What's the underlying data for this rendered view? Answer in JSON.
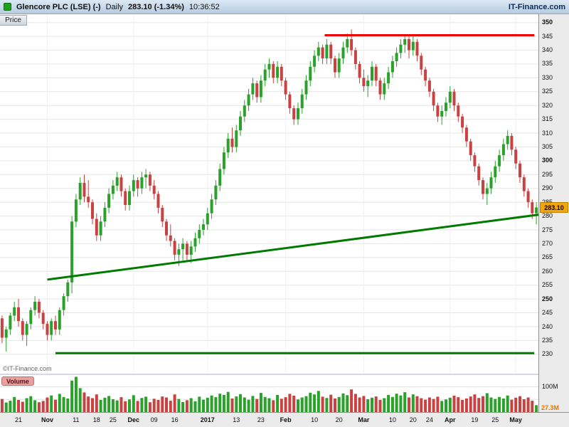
{
  "header": {
    "title": "Glencore PLC (LSE) (-)",
    "timeframe": "Daily",
    "quote": "283.10 (-1.34%)",
    "time": "10:36:52",
    "brand": "IT-Finance.com"
  },
  "price_pane": {
    "tab_label": "Price",
    "watermark": "©IT-Finance.com",
    "current_price_label": "283.10",
    "axis_ticks": [
      350,
      345,
      340,
      335,
      330,
      325,
      320,
      315,
      310,
      305,
      300,
      295,
      290,
      285,
      280,
      275,
      270,
      265,
      260,
      255,
      250,
      245,
      240,
      235,
      230
    ],
    "bold_ticks": [
      350,
      300,
      250
    ]
  },
  "volume_pane": {
    "label": "Volume",
    "axis_label_100": "100M",
    "last_value_label": "27.3M"
  },
  "x_axis": {
    "labels": [
      {
        "text": "21",
        "index": 4,
        "bold": false
      },
      {
        "text": "Nov",
        "index": 11,
        "bold": true
      },
      {
        "text": "11",
        "index": 18,
        "bold": false
      },
      {
        "text": "18",
        "index": 23,
        "bold": false
      },
      {
        "text": "25",
        "index": 27,
        "bold": false
      },
      {
        "text": "Dec",
        "index": 32,
        "bold": true
      },
      {
        "text": "09",
        "index": 37,
        "bold": false
      },
      {
        "text": "16",
        "index": 42,
        "bold": false
      },
      {
        "text": "2017",
        "index": 50,
        "bold": true
      },
      {
        "text": "13",
        "index": 57,
        "bold": false
      },
      {
        "text": "23",
        "index": 63,
        "bold": false
      },
      {
        "text": "Feb",
        "index": 69,
        "bold": true
      },
      {
        "text": "10",
        "index": 76,
        "bold": false
      },
      {
        "text": "20",
        "index": 82,
        "bold": false
      },
      {
        "text": "Mar",
        "index": 88,
        "bold": true
      },
      {
        "text": "10",
        "index": 95,
        "bold": false
      },
      {
        "text": "20",
        "index": 100,
        "bold": false
      },
      {
        "text": "24",
        "index": 104,
        "bold": false
      },
      {
        "text": "Apr",
        "index": 109,
        "bold": true
      },
      {
        "text": "19",
        "index": 115,
        "bold": false
      },
      {
        "text": "25",
        "index": 120,
        "bold": false
      },
      {
        "text": "May",
        "index": 125,
        "bold": true
      }
    ]
  },
  "colors": {
    "candle_up": "#2aa12a",
    "candle_down": "#c94141",
    "resistance_line": "#ee0000",
    "support_line": "#007a00",
    "current_price_bg": "#f2a60a",
    "volume_last_label": "#e07800"
  },
  "chart_data": {
    "type": "candlestick+volume",
    "title": "Glencore PLC (LSE) Daily",
    "ylim": [
      223,
      353
    ],
    "y_tick_step": 5,
    "last_price": 283.1,
    "last_volume_millions": 27.3,
    "vertical_gridline_indices": [
      11,
      32,
      50,
      69,
      88,
      109,
      125
    ],
    "trendlines": [
      {
        "name": "resistance-line",
        "x1": 78.5,
        "y1": 345.4,
        "x2": 129.5,
        "y2": 345.4,
        "color": "#ee0000",
        "width": 3
      },
      {
        "name": "rising-support-line",
        "x1": 11,
        "y1": 257,
        "x2": 130.6,
        "y2": 280.5,
        "color": "#007a00",
        "width": 3
      },
      {
        "name": "horizontal-support-line",
        "x1": 13,
        "y1": 230.4,
        "x2": 129.5,
        "y2": 230.4,
        "color": "#007a00",
        "width": 3
      }
    ],
    "volume_ylim": [
      0,
      147
    ],
    "volume_gridlines": [
      50,
      100
    ],
    "candles": [
      [
        243,
        244,
        234,
        236
      ],
      [
        236,
        240,
        231,
        239
      ],
      [
        239,
        245,
        237,
        244
      ],
      [
        244,
        249,
        242,
        247
      ],
      [
        247,
        250,
        240,
        242
      ],
      [
        242,
        243,
        235,
        237
      ],
      [
        237,
        242,
        233,
        241
      ],
      [
        241,
        247,
        239,
        246
      ],
      [
        246,
        251,
        244,
        249
      ],
      [
        249,
        250,
        243,
        245
      ],
      [
        245,
        246,
        239,
        241
      ],
      [
        241,
        242,
        235,
        237
      ],
      [
        237,
        243,
        235,
        242
      ],
      [
        242,
        244,
        237,
        239
      ],
      [
        239,
        247,
        237,
        246
      ],
      [
        246,
        252,
        244,
        251
      ],
      [
        251,
        257,
        249,
        256
      ],
      [
        256,
        280,
        252,
        278
      ],
      [
        278,
        288,
        276,
        286
      ],
      [
        286,
        294,
        284,
        292
      ],
      [
        292,
        295,
        285,
        287
      ],
      [
        287,
        293,
        283,
        285
      ],
      [
        285,
        286,
        277,
        279
      ],
      [
        279,
        281,
        271,
        273
      ],
      [
        273,
        280,
        271,
        278
      ],
      [
        278,
        285,
        276,
        283
      ],
      [
        283,
        290,
        281,
        288
      ],
      [
        288,
        293,
        286,
        291
      ],
      [
        291,
        296,
        289,
        294
      ],
      [
        294,
        295,
        287,
        289
      ],
      [
        289,
        290,
        282,
        284
      ],
      [
        284,
        291,
        282,
        289
      ],
      [
        289,
        295,
        287,
        293
      ],
      [
        293,
        294,
        287,
        290
      ],
      [
        290,
        296,
        288,
        294
      ],
      [
        294,
        297,
        290,
        295
      ],
      [
        295,
        296,
        289,
        291
      ],
      [
        291,
        293,
        286,
        288
      ],
      [
        288,
        289,
        281,
        283
      ],
      [
        283,
        284,
        276,
        278
      ],
      [
        278,
        279,
        271,
        273
      ],
      [
        273,
        277,
        269,
        271
      ],
      [
        271,
        272,
        264,
        266
      ],
      [
        266,
        270,
        262,
        268
      ],
      [
        268,
        272,
        264,
        270
      ],
      [
        270,
        271,
        264,
        266
      ],
      [
        266,
        271,
        263,
        269
      ],
      [
        269,
        274,
        267,
        272
      ],
      [
        272,
        277,
        270,
        275
      ],
      [
        275,
        279,
        273,
        277
      ],
      [
        277,
        283,
        275,
        281
      ],
      [
        281,
        288,
        279,
        286
      ],
      [
        286,
        293,
        284,
        291
      ],
      [
        291,
        299,
        289,
        297
      ],
      [
        297,
        305,
        295,
        303
      ],
      [
        303,
        310,
        301,
        308
      ],
      [
        308,
        312,
        303,
        305
      ],
      [
        305,
        313,
        303,
        311
      ],
      [
        311,
        318,
        309,
        316
      ],
      [
        316,
        322,
        314,
        320
      ],
      [
        320,
        326,
        318,
        324
      ],
      [
        324,
        330,
        322,
        328
      ],
      [
        328,
        329,
        321,
        323
      ],
      [
        323,
        331,
        321,
        329
      ],
      [
        329,
        335,
        327,
        333
      ],
      [
        333,
        337,
        330,
        335
      ],
      [
        335,
        336,
        328,
        330
      ],
      [
        330,
        336,
        328,
        334
      ],
      [
        334,
        335,
        327,
        329
      ],
      [
        329,
        330,
        322,
        324
      ],
      [
        324,
        325,
        317,
        319
      ],
      [
        319,
        320,
        313,
        315
      ],
      [
        315,
        321,
        313,
        319
      ],
      [
        319,
        326,
        317,
        324
      ],
      [
        324,
        331,
        322,
        329
      ],
      [
        329,
        336,
        327,
        334
      ],
      [
        334,
        340,
        332,
        338
      ],
      [
        338,
        343,
        336,
        341
      ],
      [
        341,
        342,
        335,
        337
      ],
      [
        337,
        344,
        335,
        342
      ],
      [
        342,
        343,
        335,
        337
      ],
      [
        337,
        338,
        330,
        332
      ],
      [
        332,
        339,
        330,
        337
      ],
      [
        337,
        343,
        335,
        341
      ],
      [
        341,
        346,
        339,
        344
      ],
      [
        344,
        347.5,
        338,
        340
      ],
      [
        340,
        341,
        333,
        335
      ],
      [
        335,
        336,
        328,
        330
      ],
      [
        330,
        333,
        325,
        327
      ],
      [
        327,
        331,
        323,
        329
      ],
      [
        329,
        336,
        327,
        334
      ],
      [
        334,
        335,
        327,
        329
      ],
      [
        329,
        330,
        322,
        324
      ],
      [
        324,
        330,
        322,
        328
      ],
      [
        328,
        334,
        326,
        332
      ],
      [
        332,
        338,
        330,
        336
      ],
      [
        336,
        341,
        334,
        339
      ],
      [
        339,
        344,
        337,
        342
      ],
      [
        342,
        345.5,
        339,
        344
      ],
      [
        344,
        345,
        337,
        340
      ],
      [
        340,
        345.5,
        338,
        343
      ],
      [
        343,
        344,
        336,
        338
      ],
      [
        338,
        339,
        331,
        333
      ],
      [
        333,
        334,
        327,
        329
      ],
      [
        329,
        330,
        323,
        325
      ],
      [
        325,
        326,
        318,
        320
      ],
      [
        320,
        321,
        314,
        316
      ],
      [
        316,
        320,
        313,
        318
      ],
      [
        318,
        323,
        316,
        321
      ],
      [
        321,
        327,
        319,
        325
      ],
      [
        325,
        326,
        318,
        320
      ],
      [
        320,
        321,
        314,
        316
      ],
      [
        316,
        317,
        310,
        312
      ],
      [
        312,
        313,
        305,
        307
      ],
      [
        307,
        308,
        300,
        302
      ],
      [
        302,
        303,
        296,
        298
      ],
      [
        298,
        299,
        291,
        293
      ],
      [
        293,
        294,
        286,
        288
      ],
      [
        288,
        292,
        284,
        290
      ],
      [
        290,
        296,
        288,
        294
      ],
      [
        294,
        300,
        292,
        298
      ],
      [
        298,
        304,
        296,
        302
      ],
      [
        302,
        308,
        300,
        306
      ],
      [
        306,
        311,
        304,
        309
      ],
      [
        309,
        310,
        302,
        304
      ],
      [
        304,
        305,
        297,
        299
      ],
      [
        299,
        300,
        292,
        294
      ],
      [
        294,
        295,
        287,
        289
      ],
      [
        289,
        290,
        283,
        285
      ],
      [
        285,
        286,
        279,
        281
      ],
      [
        281,
        285,
        277,
        283.1
      ]
    ],
    "volumes": [
      52,
      38,
      45,
      60,
      48,
      41,
      55,
      63,
      47,
      39,
      44,
      58,
      66,
      49,
      72,
      60,
      54,
      125,
      140,
      95,
      78,
      62,
      55,
      70,
      48,
      57,
      64,
      51,
      46,
      59,
      43,
      50,
      67,
      44,
      56,
      61,
      39,
      53,
      48,
      62,
      58,
      45,
      70,
      52,
      40,
      47,
      55,
      43,
      61,
      49,
      57,
      66,
      59,
      73,
      68,
      80,
      54,
      62,
      71,
      58,
      49,
      64,
      52,
      76,
      60,
      55,
      47,
      68,
      53,
      59,
      72,
      65,
      50,
      58,
      63,
      77,
      70,
      84,
      61,
      56,
      69,
      54,
      60,
      74,
      67,
      90,
      72,
      58,
      64,
      51,
      57,
      62,
      48,
      55,
      68,
      60,
      73,
      66,
      79,
      58,
      70,
      63,
      55,
      49,
      58,
      52,
      61,
      44,
      50,
      57,
      65,
      59,
      48,
      54,
      62,
      70,
      56,
      63,
      75,
      58,
      52,
      60,
      54,
      66,
      49,
      57,
      63,
      51,
      58,
      45,
      27.3
    ]
  }
}
